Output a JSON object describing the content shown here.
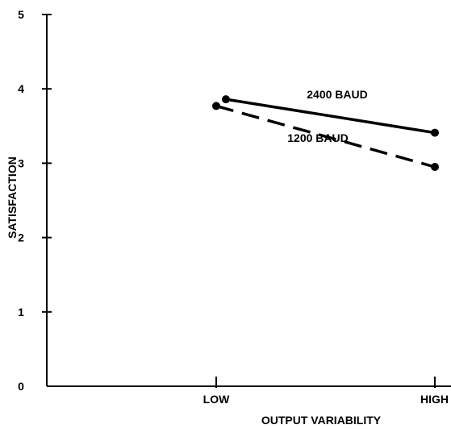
{
  "chart_data": {
    "type": "line",
    "title": "",
    "xlabel": "OUTPUT VARIABILITY",
    "ylabel": "SATISFACTION",
    "categories": [
      "LOW",
      "HIGH"
    ],
    "ylim": [
      0,
      5
    ],
    "yticks": [
      "0",
      "1",
      "2",
      "3",
      "4",
      "5"
    ],
    "grid": false,
    "legend": "none",
    "series": [
      {
        "name": "2400 BAUD",
        "values": [
          3.86,
          3.41
        ],
        "style": "solid",
        "color": "#000000"
      },
      {
        "name": "1200 BAUD",
        "values": [
          3.77,
          2.95
        ],
        "style": "dashed",
        "color": "#000000"
      }
    ]
  }
}
